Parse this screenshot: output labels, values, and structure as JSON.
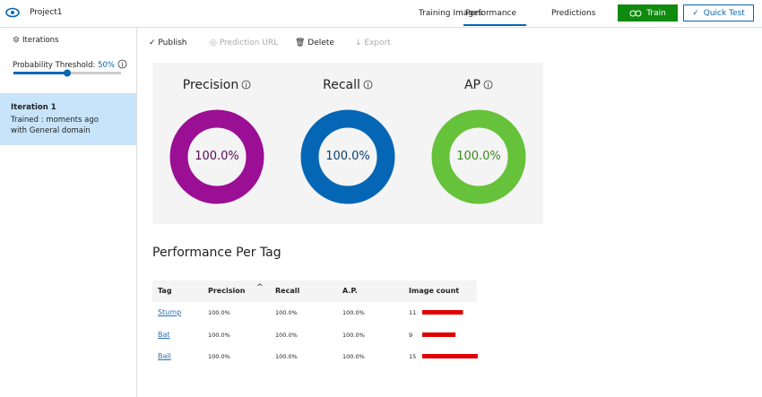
{
  "header": {
    "project": "Project1",
    "tabs": [
      "Training Images",
      "Performance",
      "Predictions"
    ],
    "active_tab": 1,
    "train": "Train",
    "quick_test": "Quick Test"
  },
  "sidebar": {
    "iterations_label": "Iterations",
    "threshold_label": "Probability Threshold:",
    "threshold_value": "50%",
    "iteration": {
      "title": "Iteration 1",
      "details": "Trained : moments ago with General domain"
    }
  },
  "toolbar": [
    "Publish",
    "Prediction URL",
    "Delete",
    "Export"
  ],
  "metrics": [
    {
      "name": "Precision",
      "value": "100.0%",
      "color": "#9b0f94"
    },
    {
      "name": "Recall",
      "value": "100.0%",
      "color": "#0566b5"
    },
    {
      "name": "AP",
      "value": "100.0%",
      "color": "#66c23a"
    }
  ],
  "per_tag": {
    "title": "Performance Per Tag",
    "columns": [
      "Tag",
      "Precision",
      "Recall",
      "A.P.",
      "Image count"
    ],
    "bar_color": "#e00000",
    "rows": [
      {
        "tag": "Stump",
        "precision": "100.0%",
        "recall": "100.0%",
        "ap": "100.0%",
        "image_count": 11
      },
      {
        "tag": "Bat",
        "precision": "100.0%",
        "recall": "100.0%",
        "ap": "100.0%",
        "image_count": 9
      },
      {
        "tag": "Ball",
        "precision": "100.0%",
        "recall": "100.0%",
        "ap": "100.0%",
        "image_count": 15
      }
    ]
  }
}
